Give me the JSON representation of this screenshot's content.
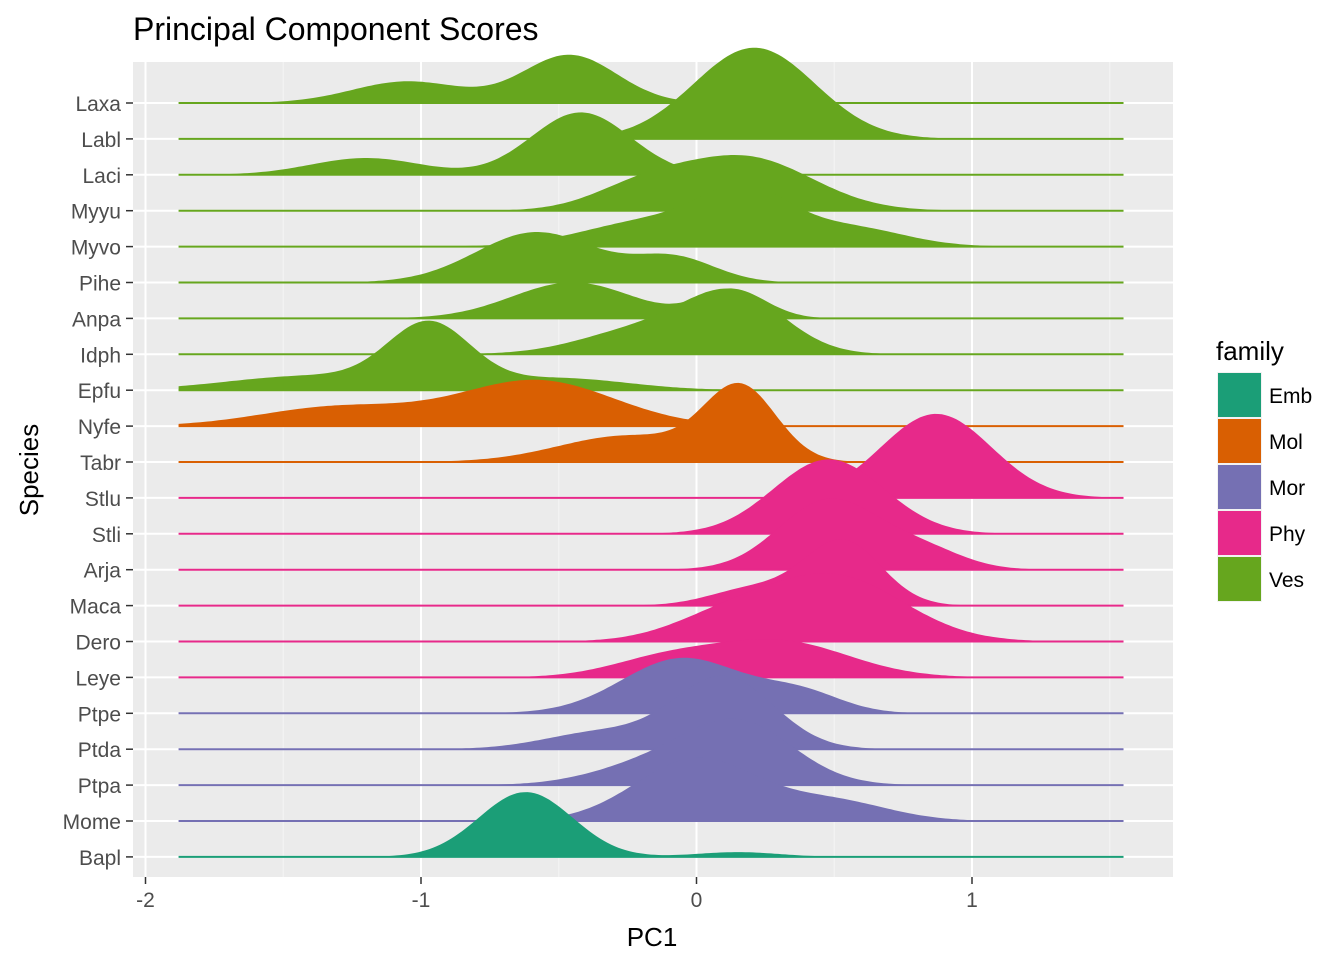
{
  "chart_data": {
    "type": "ridgeline",
    "title": "Principal Component Scores",
    "xlabel": "PC1",
    "ylabel": "Species",
    "xlim": [
      -2.05,
      1.7
    ],
    "x_ticks": [
      -2,
      -1,
      0,
      1
    ],
    "x_tick_labels": [
      "-2",
      "-1",
      "0",
      "1"
    ],
    "grid": true,
    "legend": {
      "title": "family",
      "position": "right",
      "entries": [
        {
          "label": "Emb",
          "color": "#1b9e77"
        },
        {
          "label": "Mol",
          "color": "#d95f02"
        },
        {
          "label": "Mor",
          "color": "#7570b3"
        },
        {
          "label": "Phy",
          "color": "#e7298a"
        },
        {
          "label": "Ves",
          "color": "#66a61e"
        }
      ]
    },
    "series": [
      {
        "name": "Laxa",
        "family": "Ves",
        "peaks": [
          {
            "mu": -0.46,
            "sd": 0.17,
            "h": 1.0
          },
          {
            "mu": -1.05,
            "sd": 0.2,
            "h": 0.45
          }
        ]
      },
      {
        "name": "Labl",
        "family": "Ves",
        "peaks": [
          {
            "mu": 0.21,
            "sd": 0.22,
            "h": 1.9
          }
        ]
      },
      {
        "name": "Laci",
        "family": "Ves",
        "peaks": [
          {
            "mu": -0.42,
            "sd": 0.18,
            "h": 1.3
          },
          {
            "mu": -1.2,
            "sd": 0.2,
            "h": 0.35
          }
        ]
      },
      {
        "name": "Myyu",
        "family": "Ves",
        "peaks": [
          {
            "mu": 0.18,
            "sd": 0.24,
            "h": 1.1
          },
          {
            "mu": -0.2,
            "sd": 0.18,
            "h": 0.45
          }
        ]
      },
      {
        "name": "Myvo",
        "family": "Ves",
        "peaks": [
          {
            "mu": 0.18,
            "sd": 0.16,
            "h": 1.0
          },
          {
            "mu": -0.15,
            "sd": 0.25,
            "h": 0.55
          },
          {
            "mu": 0.55,
            "sd": 0.2,
            "h": 0.4
          }
        ]
      },
      {
        "name": "Pihe",
        "family": "Ves",
        "peaks": [
          {
            "mu": -0.58,
            "sd": 0.22,
            "h": 1.05
          },
          {
            "mu": -0.08,
            "sd": 0.15,
            "h": 0.5
          }
        ]
      },
      {
        "name": "Anpa",
        "family": "Ves",
        "peaks": [
          {
            "mu": -0.45,
            "sd": 0.22,
            "h": 0.75
          },
          {
            "mu": 0.13,
            "sd": 0.12,
            "h": 0.6
          }
        ]
      },
      {
        "name": "Idph",
        "family": "Ves",
        "peaks": [
          {
            "mu": 0.14,
            "sd": 0.18,
            "h": 1.2
          },
          {
            "mu": -0.2,
            "sd": 0.22,
            "h": 0.5
          }
        ]
      },
      {
        "name": "Epfu",
        "family": "Ves",
        "peaks": [
          {
            "mu": -0.97,
            "sd": 0.15,
            "h": 1.3
          },
          {
            "mu": -1.4,
            "sd": 0.3,
            "h": 0.3
          },
          {
            "mu": -0.5,
            "sd": 0.25,
            "h": 0.25
          }
        ]
      },
      {
        "name": "Nyfe",
        "family": "Mol",
        "peaks": [
          {
            "mu": -0.58,
            "sd": 0.28,
            "h": 0.95
          },
          {
            "mu": -1.3,
            "sd": 0.28,
            "h": 0.4
          }
        ]
      },
      {
        "name": "Tabr",
        "family": "Mol",
        "peaks": [
          {
            "mu": 0.16,
            "sd": 0.13,
            "h": 1.5
          },
          {
            "mu": -0.25,
            "sd": 0.25,
            "h": 0.55
          }
        ]
      },
      {
        "name": "Stlu",
        "family": "Phy",
        "peaks": [
          {
            "mu": 0.87,
            "sd": 0.2,
            "h": 1.75
          }
        ]
      },
      {
        "name": "Stli",
        "family": "Phy",
        "peaks": [
          {
            "mu": 0.48,
            "sd": 0.2,
            "h": 1.55
          }
        ]
      },
      {
        "name": "Arja",
        "family": "Phy",
        "peaks": [
          {
            "mu": 0.48,
            "sd": 0.18,
            "h": 1.45
          },
          {
            "mu": 0.82,
            "sd": 0.15,
            "h": 0.4
          }
        ]
      },
      {
        "name": "Maca",
        "family": "Phy",
        "peaks": [
          {
            "mu": 0.53,
            "sd": 0.14,
            "h": 1.35
          },
          {
            "mu": 0.2,
            "sd": 0.15,
            "h": 0.35
          }
        ]
      },
      {
        "name": "Dero",
        "family": "Phy",
        "peaks": [
          {
            "mu": 0.5,
            "sd": 0.25,
            "h": 1.35
          },
          {
            "mu": 0.1,
            "sd": 0.2,
            "h": 0.45
          }
        ]
      },
      {
        "name": "Leye",
        "family": "Phy",
        "peaks": [
          {
            "mu": 0.3,
            "sd": 0.25,
            "h": 0.75
          },
          {
            "mu": -0.12,
            "sd": 0.2,
            "h": 0.35
          }
        ]
      },
      {
        "name": "Ptpe",
        "family": "Mor",
        "peaks": [
          {
            "mu": -0.05,
            "sd": 0.22,
            "h": 1.15
          },
          {
            "mu": 0.38,
            "sd": 0.15,
            "h": 0.4
          }
        ]
      },
      {
        "name": "Ptda",
        "family": "Mor",
        "peaks": [
          {
            "mu": 0.1,
            "sd": 0.18,
            "h": 1.5
          },
          {
            "mu": -0.35,
            "sd": 0.2,
            "h": 0.35
          }
        ]
      },
      {
        "name": "Ptpa",
        "family": "Mor",
        "peaks": [
          {
            "mu": 0.15,
            "sd": 0.2,
            "h": 1.3
          },
          {
            "mu": -0.2,
            "sd": 0.2,
            "h": 0.35
          }
        ]
      },
      {
        "name": "Mome",
        "family": "Mor",
        "peaks": [
          {
            "mu": 0.0,
            "sd": 0.22,
            "h": 1.3
          },
          {
            "mu": 0.5,
            "sd": 0.2,
            "h": 0.4
          }
        ]
      },
      {
        "name": "Bapl",
        "family": "Emb",
        "peaks": [
          {
            "mu": -0.62,
            "sd": 0.17,
            "h": 1.35
          },
          {
            "mu": 0.15,
            "sd": 0.15,
            "h": 0.1
          }
        ]
      }
    ]
  }
}
